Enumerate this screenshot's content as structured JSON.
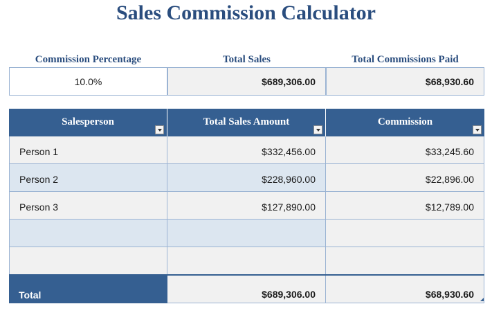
{
  "title": "Sales Commission Calculator",
  "summary": {
    "labels": [
      "Commission Percentage",
      "Total Sales",
      "Total Commissions Paid"
    ],
    "commission_percentage": "10.0%",
    "total_sales": "$689,306.00",
    "total_commissions_paid": "$68,930.60"
  },
  "table": {
    "headers": [
      "Salesperson",
      "Total Sales Amount",
      "Commission"
    ],
    "rows": [
      {
        "salesperson": "Person 1",
        "sales": "$332,456.00",
        "commission": "$33,245.60"
      },
      {
        "salesperson": "Person 2",
        "sales": "$228,960.00",
        "commission": "$22,896.00"
      },
      {
        "salesperson": "Person 3",
        "sales": "$127,890.00",
        "commission": "$12,789.00"
      },
      {
        "salesperson": "",
        "sales": "",
        "commission": ""
      },
      {
        "salesperson": "",
        "sales": "",
        "commission": ""
      }
    ],
    "total": {
      "label": "Total",
      "sales": "$689,306.00",
      "commission": "$68,930.60"
    }
  },
  "colors": {
    "accent": "#2a4d7e",
    "header_bg": "#355f91",
    "band": "#dce6f0",
    "cell_bg": "#f1f1f1",
    "border": "#9ab3d3"
  }
}
